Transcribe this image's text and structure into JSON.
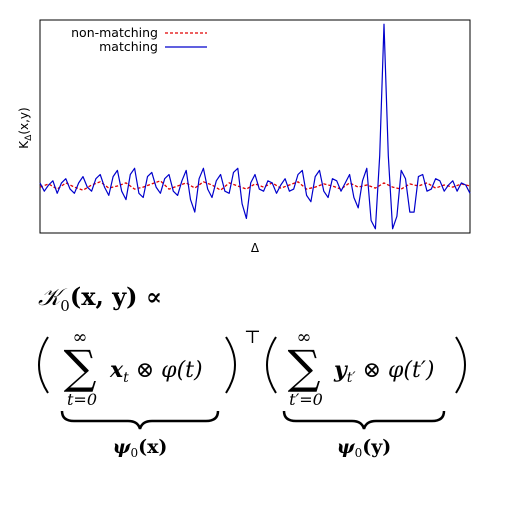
{
  "chart_data": {
    "type": "line",
    "xlabel": "Δ",
    "ylabel": "KΔ(x,y)",
    "ylabel_main": "K",
    "ylabel_sub": "Δ",
    "ylabel_rest": "(x,y)",
    "x_ticks": [],
    "y_ticks": [],
    "grid": false,
    "legend_position": "top-left",
    "xlim": [
      0,
      100
    ],
    "ylim": [
      -2.2,
      8.0
    ],
    "series": [
      {
        "name": "non-matching",
        "color": "#e00000",
        "style": "dashed",
        "x": [
          0,
          2,
          4,
          6,
          8,
          10,
          12,
          14,
          16,
          18,
          20,
          22,
          24,
          26,
          28,
          30,
          32,
          34,
          36,
          38,
          40,
          42,
          44,
          46,
          48,
          50,
          52,
          54,
          56,
          58,
          60,
          62,
          64,
          66,
          68,
          70,
          72,
          74,
          76,
          78,
          80,
          82,
          84,
          86,
          88,
          90,
          92,
          94,
          96,
          98,
          100
        ],
        "values": [
          0.0,
          0.15,
          -0.1,
          0.2,
          0.0,
          -0.15,
          0.1,
          0.25,
          -0.05,
          0.05,
          0.2,
          -0.1,
          0.0,
          0.15,
          0.3,
          -0.1,
          0.05,
          0.2,
          -0.05,
          0.25,
          0.1,
          -0.15,
          0.2,
          0.05,
          -0.1,
          0.15,
          0.0,
          0.2,
          -0.05,
          0.1,
          0.25,
          -0.1,
          0.0,
          0.15,
          0.05,
          -0.1,
          0.2,
          0.0,
          0.1,
          -0.05,
          0.2,
          0.0,
          -0.1,
          0.15,
          0.05,
          0.2,
          -0.05,
          0.1,
          0.0,
          0.15,
          0.05
        ]
      },
      {
        "name": "matching",
        "color": "#0000cc",
        "style": "solid",
        "x": [
          0,
          1,
          2,
          3,
          4,
          5,
          6,
          7,
          8,
          9,
          10,
          11,
          12,
          13,
          14,
          15,
          16,
          17,
          18,
          19,
          20,
          21,
          22,
          23,
          24,
          25,
          26,
          27,
          28,
          29,
          30,
          31,
          32,
          33,
          34,
          35,
          36,
          37,
          38,
          39,
          40,
          41,
          42,
          43,
          44,
          45,
          46,
          47,
          48,
          49,
          50,
          51,
          52,
          53,
          54,
          55,
          56,
          57,
          58,
          59,
          60,
          61,
          62,
          63,
          64,
          65,
          66,
          67,
          68,
          69,
          70,
          71,
          72,
          73,
          74,
          75,
          76,
          77,
          78,
          79,
          80,
          81,
          82,
          83,
          84,
          85,
          86,
          87,
          88,
          89,
          90,
          91,
          92,
          93,
          94,
          95,
          96,
          97,
          98,
          99,
          100
        ],
        "values": [
          0.2,
          -0.2,
          0.1,
          0.3,
          -0.3,
          0.2,
          0.4,
          -0.1,
          -0.3,
          0.2,
          0.5,
          0.0,
          -0.2,
          0.4,
          0.6,
          0.0,
          -0.4,
          0.5,
          0.8,
          -0.2,
          -0.6,
          0.6,
          0.9,
          -0.3,
          -0.5,
          0.5,
          0.7,
          0.0,
          -0.3,
          0.4,
          0.6,
          -0.2,
          -0.4,
          0.3,
          0.8,
          -0.6,
          -1.2,
          0.4,
          0.9,
          -0.1,
          -0.5,
          0.3,
          0.6,
          -0.2,
          -0.3,
          0.7,
          0.9,
          -0.8,
          -1.5,
          0.2,
          0.6,
          -0.1,
          -0.2,
          0.3,
          0.2,
          -0.3,
          0.1,
          0.4,
          -0.2,
          -0.1,
          0.6,
          0.8,
          -0.4,
          -0.7,
          0.5,
          0.8,
          -0.2,
          -0.5,
          0.4,
          0.3,
          -0.2,
          0.2,
          0.6,
          -0.5,
          -1.0,
          0.3,
          0.9,
          -1.6,
          -2.0,
          1.5,
          7.8,
          1.5,
          -2.0,
          -1.4,
          0.8,
          0.4,
          -1.2,
          -1.2,
          0.5,
          0.6,
          -0.2,
          -0.1,
          0.4,
          0.3,
          -0.2,
          0.1,
          0.3,
          -0.2,
          0.2,
          0.1,
          -0.3
        ]
      }
    ]
  },
  "equation": {
    "line1_lhs": "𝒦",
    "line1_sub": "0",
    "line1_args": "(x, y) ∝",
    "sum_symbol": "∑",
    "sum_upper": "∞",
    "sum1_lower": "t=0",
    "sum1_body_var": "x",
    "sum1_body_sub": "t",
    "sum1_body_rest": " ⊗ φ(t)",
    "transpose": "⊤",
    "sum2_lower": "t′=0",
    "sum2_body_var": "y",
    "sum2_body_sub": "t′",
    "sum2_body_rest": " ⊗ φ(t′)",
    "brace1_label_psi": "ψ",
    "brace1_label_sub": "0",
    "brace1_label_arg": "(x)",
    "brace2_label_psi": "ψ",
    "brace2_label_sub": "0",
    "brace2_label_arg": "(y)"
  }
}
